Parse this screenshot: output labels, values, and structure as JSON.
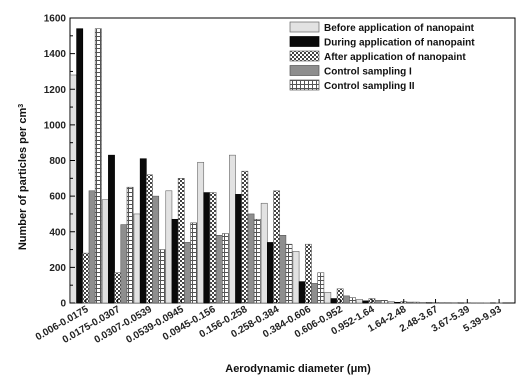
{
  "chart_data": {
    "type": "bar",
    "xlabel": "Aerodynamic diameter (μm)",
    "ylabel": "Number of particles per cm³",
    "ylabel_main": "Number of particles per cm",
    "ylabel_sup": "3",
    "ylim": [
      0,
      1600
    ],
    "yticks": [
      0,
      200,
      400,
      600,
      800,
      1000,
      1200,
      1400,
      1600
    ],
    "legend_position": "top-right",
    "grid": false,
    "categories": [
      "0.006-0.0175",
      "0.0175-0.0307",
      "0.0307-0.0539",
      "0.0539-0.0945",
      "0.0945-0.156",
      "0.156-0.258",
      "0.258-0.384",
      "0.384-0.606",
      "0.606-0.952",
      "0.952-1.64",
      "1.64-2.48",
      "2.48-3.67",
      "3.67-5.39",
      "5.39-9.93"
    ],
    "series": [
      {
        "name": "Before application of nanopaint",
        "pattern": "light",
        "values": [
          1280,
          580,
          500,
          630,
          790,
          830,
          560,
          290,
          60,
          20,
          8,
          3,
          2,
          1
        ]
      },
      {
        "name": "During application of nanopaint",
        "pattern": "black",
        "values": [
          1540,
          830,
          810,
          470,
          620,
          610,
          340,
          120,
          25,
          12,
          4,
          2,
          1,
          0
        ]
      },
      {
        "name": "After application of nanopaint",
        "pattern": "checker",
        "values": [
          280,
          170,
          720,
          700,
          620,
          740,
          630,
          330,
          80,
          25,
          8,
          3,
          2,
          1
        ]
      },
      {
        "name": "Control sampling I",
        "pattern": "gray",
        "values": [
          630,
          440,
          600,
          340,
          380,
          500,
          380,
          110,
          40,
          15,
          5,
          2,
          1,
          0
        ]
      },
      {
        "name": "Control sampling  II",
        "pattern": "grid",
        "values": [
          1540,
          650,
          300,
          450,
          390,
          470,
          330,
          170,
          30,
          15,
          5,
          2,
          1,
          0
        ]
      }
    ]
  }
}
